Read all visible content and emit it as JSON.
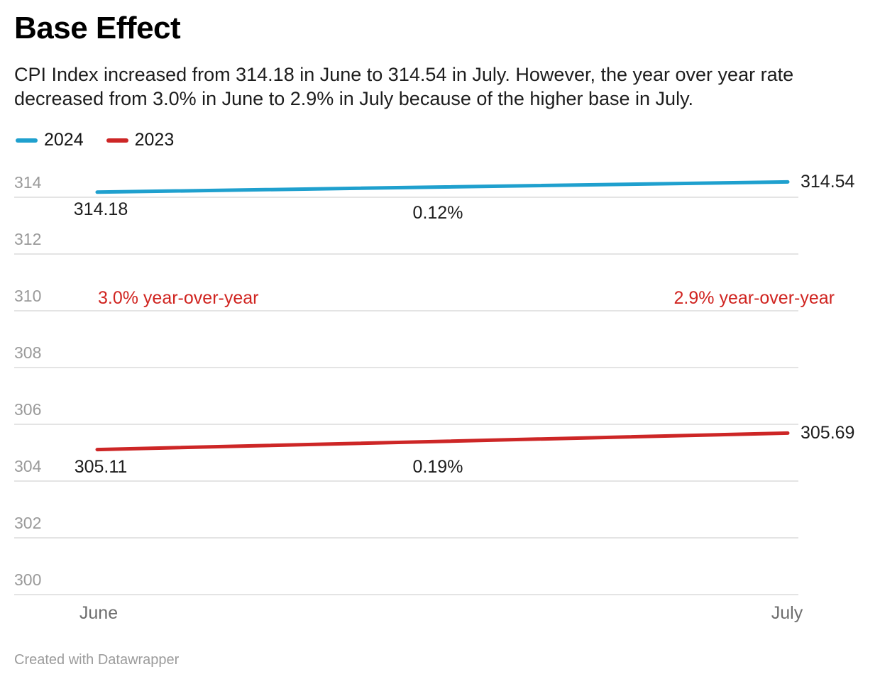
{
  "header": {
    "title": "Base Effect",
    "description_lines": [
      "CPI Index increased from 314.18 in June to 314.54 in July. However, the year over year rate",
      "decreased from 3.0% in June to 2.9% in July because of the higher base in July."
    ]
  },
  "footer": {
    "credit": "Created with Datawrapper"
  },
  "colors": {
    "grid": "#e4e4e4",
    "tick_label": "#9a9a9a",
    "axis_label": "#6e6e6e",
    "text": "#1d1d1d",
    "series_2024": "#1FA0CE",
    "series_2023": "#CD2626",
    "annotation_red": "#D02420"
  },
  "chart_data": {
    "type": "line",
    "title": "Base Effect",
    "x": [
      "June",
      "July"
    ],
    "series": [
      {
        "name": "2024",
        "color": "#1FA0CE",
        "values": [
          314.18,
          314.54
        ],
        "start_label": "314.18",
        "end_label": "314.54",
        "change_label": "0.12%"
      },
      {
        "name": "2023",
        "color": "#CD2626",
        "values": [
          305.11,
          305.69
        ],
        "start_label": "305.11",
        "end_label": "305.69",
        "change_label": "0.19%"
      }
    ],
    "annotations": [
      {
        "text": "3.0% year-over-year",
        "color": "#D02420",
        "align": "left",
        "y_value": 310.45
      },
      {
        "text": "2.9% year-over-year",
        "color": "#D02420",
        "align": "right",
        "y_value": 310.45
      }
    ],
    "y_ticks": [
      300,
      302,
      304,
      306,
      308,
      310,
      312,
      314
    ],
    "ylim": [
      300,
      315
    ],
    "grid": true,
    "legend_position": "top-left"
  }
}
